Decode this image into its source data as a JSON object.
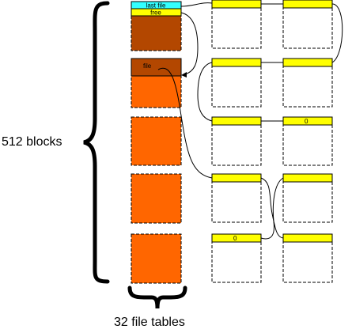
{
  "labels": {
    "blocks": "512 blocks",
    "file_tables": "32 file tables",
    "last_file": "last file",
    "free": "free",
    "file": "file",
    "zero_mid": "0",
    "zero_bottom": "0"
  },
  "colors": {
    "orange": "#ff6600",
    "brown": "#b34700",
    "yellow": "#ffff00",
    "cyan": "#33ffff",
    "stroke": "#000000"
  }
}
